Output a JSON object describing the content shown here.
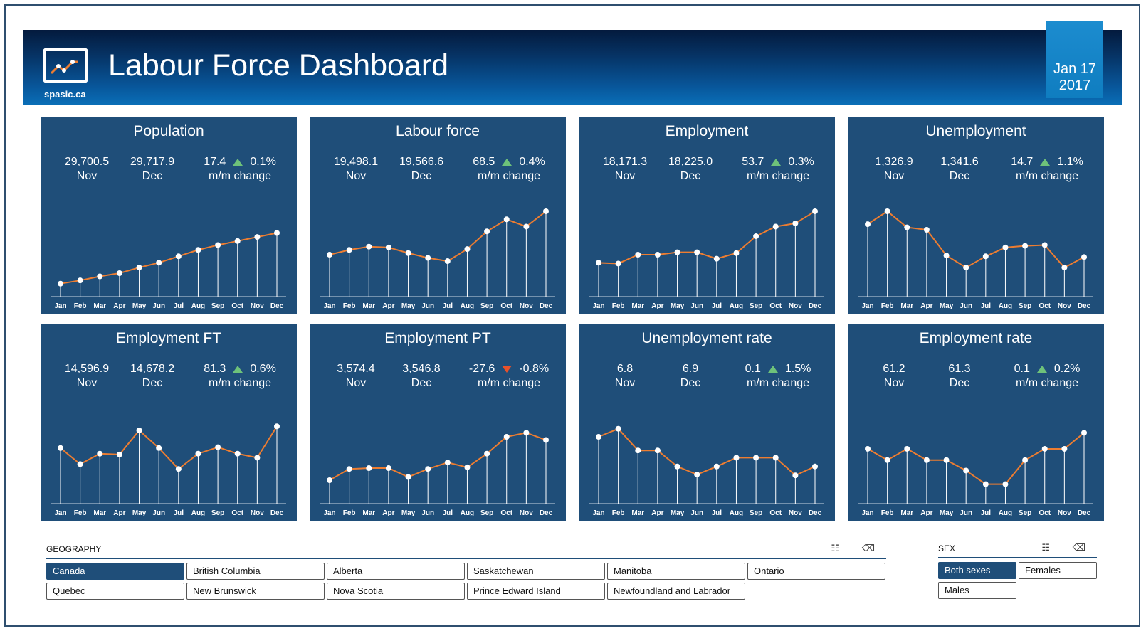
{
  "header": {
    "title": "Labour Force Dashboard",
    "logo_text": "spasic.ca",
    "date_line1": "Jan 17",
    "date_line2": "2017"
  },
  "colors": {
    "panel": "#1f4e79",
    "line": "#ed7d31",
    "up": "#6ec27a",
    "down": "#e8512a"
  },
  "months": [
    "Jan",
    "Feb",
    "Mar",
    "Apr",
    "May",
    "Jun",
    "Jul",
    "Aug",
    "Sep",
    "Oct",
    "Nov",
    "Dec"
  ],
  "panels": [
    {
      "title": "Population",
      "nov": "29,700.5",
      "nov_label": "Nov",
      "dec": "29,717.9",
      "dec_label": "Dec",
      "change": "17.4",
      "pct": "0.1%",
      "change_label": "m/m change",
      "direction": "up"
    },
    {
      "title": "Labour force",
      "nov": "19,498.1",
      "nov_label": "Nov",
      "dec": "19,566.6",
      "dec_label": "Dec",
      "change": "68.5",
      "pct": "0.4%",
      "change_label": "m/m change",
      "direction": "up"
    },
    {
      "title": "Employment",
      "nov": "18,171.3",
      "nov_label": "Nov",
      "dec": "18,225.0",
      "dec_label": "Dec",
      "change": "53.7",
      "pct": "0.3%",
      "change_label": "m/m change",
      "direction": "up"
    },
    {
      "title": "Unemployment",
      "nov": "1,326.9",
      "nov_label": "Nov",
      "dec": "1,341.6",
      "dec_label": "Dec",
      "change": "14.7",
      "pct": "1.1%",
      "change_label": "m/m change",
      "direction": "up"
    },
    {
      "title": "Employment FT",
      "nov": "14,596.9",
      "nov_label": "Nov",
      "dec": "14,678.2",
      "dec_label": "Dec",
      "change": "81.3",
      "pct": "0.6%",
      "change_label": "m/m change",
      "direction": "up"
    },
    {
      "title": "Employment PT",
      "nov": "3,574.4",
      "nov_label": "Nov",
      "dec": "3,546.8",
      "dec_label": "Dec",
      "change": "-27.6",
      "pct": "-0.8%",
      "change_label": "m/m change",
      "direction": "down"
    },
    {
      "title": "Unemployment rate",
      "nov": "6.8",
      "nov_label": "Nov",
      "dec": "6.9",
      "dec_label": "Dec",
      "change": "0.1",
      "pct": "1.5%",
      "change_label": "m/m change",
      "direction": "up"
    },
    {
      "title": "Employment rate",
      "nov": "61.2",
      "nov_label": "Nov",
      "dec": "61.3",
      "dec_label": "Dec",
      "change": "0.1",
      "pct": "0.2%",
      "change_label": "m/m change",
      "direction": "up"
    }
  ],
  "chart_data": [
    {
      "type": "line",
      "series": [
        {
          "values": [
            0.1,
            0.14,
            0.19,
            0.23,
            0.3,
            0.36,
            0.44,
            0.52,
            0.58,
            0.63,
            0.68,
            0.73
          ]
        }
      ],
      "ylim": [
        0,
        1
      ]
    },
    {
      "type": "line",
      "series": [
        {
          "values": [
            0.46,
            0.52,
            0.56,
            0.55,
            0.48,
            0.42,
            0.38,
            0.53,
            0.75,
            0.9,
            0.81,
            1.0
          ]
        }
      ],
      "ylim": [
        0,
        1
      ]
    },
    {
      "type": "line",
      "series": [
        {
          "values": [
            0.36,
            0.35,
            0.46,
            0.46,
            0.49,
            0.49,
            0.41,
            0.48,
            0.69,
            0.81,
            0.85,
            1.0
          ]
        }
      ],
      "ylim": [
        0,
        1
      ]
    },
    {
      "type": "line",
      "series": [
        {
          "values": [
            0.84,
            1.0,
            0.8,
            0.77,
            0.45,
            0.3,
            0.44,
            0.55,
            0.57,
            0.58,
            0.3,
            0.43
          ]
        }
      ],
      "ylim": [
        0,
        1
      ]
    },
    {
      "type": "line",
      "series": [
        {
          "values": [
            0.63,
            0.43,
            0.56,
            0.55,
            0.85,
            0.63,
            0.37,
            0.56,
            0.64,
            0.56,
            0.51,
            0.9
          ]
        }
      ],
      "ylim": [
        0,
        1
      ]
    },
    {
      "type": "line",
      "series": [
        {
          "values": [
            0.23,
            0.37,
            0.38,
            0.38,
            0.27,
            0.37,
            0.45,
            0.39,
            0.56,
            0.77,
            0.82,
            0.73
          ]
        }
      ],
      "ylim": [
        0,
        1
      ]
    },
    {
      "type": "line",
      "series": [
        {
          "values": [
            0.77,
            0.87,
            0.6,
            0.6,
            0.4,
            0.3,
            0.4,
            0.51,
            0.51,
            0.51,
            0.29,
            0.4
          ]
        }
      ],
      "ylim": [
        0,
        1
      ]
    },
    {
      "type": "line",
      "series": [
        {
          "values": [
            0.62,
            0.48,
            0.62,
            0.48,
            0.48,
            0.35,
            0.18,
            0.18,
            0.48,
            0.62,
            0.62,
            0.82
          ]
        }
      ],
      "ylim": [
        0,
        1
      ]
    }
  ],
  "geography": {
    "label": "GEOGRAPHY",
    "icons": "☷ ⌫",
    "items": [
      "Canada",
      "British Columbia",
      "Alberta",
      "Saskatchewan",
      "Manitoba",
      "Ontario",
      "Quebec",
      "New Brunswick",
      "Nova Scotia",
      "Prince Edward Island",
      "Newfoundland and Labrador"
    ],
    "selected": "Canada"
  },
  "sex": {
    "label": "SEX",
    "icons": "☷ ⌫",
    "items": [
      "Both sexes",
      "Females",
      "Males"
    ],
    "selected": "Both sexes"
  }
}
